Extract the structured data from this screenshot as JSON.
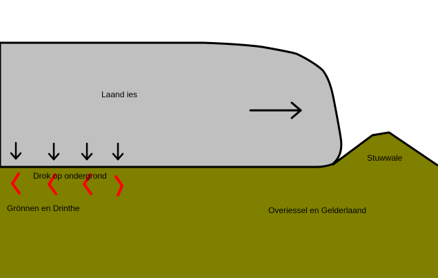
{
  "labels": {
    "ice": "Laand ies",
    "pressure": "Drok op ondergrond",
    "groningen_drenthe": "Grönnen en Drinthe",
    "overijssel_gelderland": "Overiessel en Gelderlaand",
    "push_moraine": "Stuwwale"
  },
  "colors": {
    "ground": "#808000",
    "ice": "#c0c0c0",
    "outline": "#000000",
    "deformation": "#ff0000",
    "background": "#ffffff"
  },
  "icons": {
    "ice_flow": "arrow-right-icon",
    "pressure": "arrow-down-icon",
    "deformation": "zigzag-icon"
  }
}
